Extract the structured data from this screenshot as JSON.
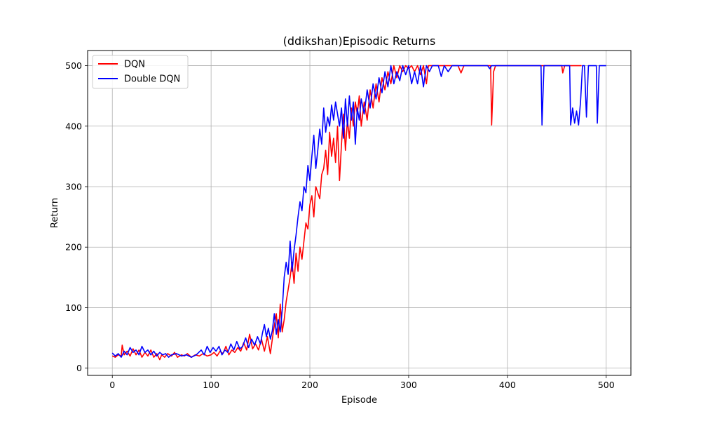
{
  "chart_data": {
    "type": "line",
    "title": "(ddikshan)Episodic Returns",
    "xlabel": "Episode",
    "ylabel": "Return",
    "xlim": [
      -25,
      525
    ],
    "ylim": [
      -12,
      525
    ],
    "xticks": [
      0,
      100,
      200,
      300,
      400,
      500
    ],
    "yticks": [
      0,
      100,
      200,
      300,
      400,
      500
    ],
    "grid": true,
    "legend_position": "top-left",
    "series": [
      {
        "name": "DQN",
        "color": "#ff0000",
        "points": [
          [
            0,
            20
          ],
          [
            3,
            18
          ],
          [
            6,
            22
          ],
          [
            9,
            20
          ],
          [
            10,
            38
          ],
          [
            12,
            22
          ],
          [
            15,
            28
          ],
          [
            18,
            20
          ],
          [
            21,
            32
          ],
          [
            24,
            22
          ],
          [
            27,
            30
          ],
          [
            30,
            18
          ],
          [
            33,
            26
          ],
          [
            36,
            20
          ],
          [
            39,
            30
          ],
          [
            42,
            18
          ],
          [
            45,
            24
          ],
          [
            48,
            14
          ],
          [
            50,
            22
          ],
          [
            53,
            18
          ],
          [
            56,
            24
          ],
          [
            60,
            20
          ],
          [
            63,
            26
          ],
          [
            66,
            18
          ],
          [
            70,
            22
          ],
          [
            73,
            20
          ],
          [
            76,
            24
          ],
          [
            80,
            18
          ],
          [
            84,
            22
          ],
          [
            88,
            20
          ],
          [
            92,
            24
          ],
          [
            96,
            20
          ],
          [
            100,
            22
          ],
          [
            103,
            26
          ],
          [
            106,
            20
          ],
          [
            109,
            28
          ],
          [
            112,
            24
          ],
          [
            115,
            36
          ],
          [
            118,
            22
          ],
          [
            121,
            30
          ],
          [
            124,
            26
          ],
          [
            127,
            34
          ],
          [
            130,
            28
          ],
          [
            133,
            42
          ],
          [
            136,
            30
          ],
          [
            139,
            56
          ],
          [
            142,
            32
          ],
          [
            145,
            40
          ],
          [
            148,
            30
          ],
          [
            151,
            48
          ],
          [
            154,
            28
          ],
          [
            157,
            52
          ],
          [
            160,
            24
          ],
          [
            163,
            60
          ],
          [
            166,
            90
          ],
          [
            168,
            50
          ],
          [
            170,
            106
          ],
          [
            172,
            60
          ],
          [
            174,
            80
          ],
          [
            176,
            110
          ],
          [
            178,
            130
          ],
          [
            180,
            150
          ],
          [
            182,
            175
          ],
          [
            184,
            140
          ],
          [
            186,
            190
          ],
          [
            188,
            160
          ],
          [
            190,
            200
          ],
          [
            192,
            180
          ],
          [
            194,
            210
          ],
          [
            196,
            240
          ],
          [
            198,
            230
          ],
          [
            200,
            270
          ],
          [
            202,
            285
          ],
          [
            204,
            250
          ],
          [
            206,
            300
          ],
          [
            208,
            290
          ],
          [
            210,
            280
          ],
          [
            212,
            320
          ],
          [
            214,
            330
          ],
          [
            216,
            360
          ],
          [
            218,
            320
          ],
          [
            220,
            390
          ],
          [
            222,
            350
          ],
          [
            224,
            380
          ],
          [
            226,
            340
          ],
          [
            228,
            400
          ],
          [
            230,
            310
          ],
          [
            232,
            370
          ],
          [
            234,
            420
          ],
          [
            236,
            360
          ],
          [
            238,
            410
          ],
          [
            240,
            380
          ],
          [
            242,
            430
          ],
          [
            244,
            400
          ],
          [
            246,
            440
          ],
          [
            248,
            420
          ],
          [
            250,
            450
          ],
          [
            252,
            400
          ],
          [
            255,
            440
          ],
          [
            258,
            410
          ],
          [
            261,
            460
          ],
          [
            264,
            430
          ],
          [
            267,
            470
          ],
          [
            270,
            440
          ],
          [
            273,
            480
          ],
          [
            276,
            460
          ],
          [
            279,
            490
          ],
          [
            282,
            470
          ],
          [
            285,
            500
          ],
          [
            288,
            480
          ],
          [
            291,
            500
          ],
          [
            294,
            490
          ],
          [
            297,
            500
          ],
          [
            300,
            495
          ],
          [
            303,
            500
          ],
          [
            306,
            490
          ],
          [
            309,
            500
          ],
          [
            312,
            485
          ],
          [
            315,
            500
          ],
          [
            318,
            470
          ],
          [
            320,
            500
          ],
          [
            350,
            500
          ],
          [
            353,
            488
          ],
          [
            356,
            500
          ],
          [
            383,
            500
          ],
          [
            384,
            402
          ],
          [
            386,
            490
          ],
          [
            388,
            500
          ],
          [
            455,
            500
          ],
          [
            456,
            488
          ],
          [
            458,
            500
          ],
          [
            475,
            500
          ]
        ]
      },
      {
        "name": "Double DQN",
        "color": "#0000ff",
        "points": [
          [
            0,
            25
          ],
          [
            3,
            20
          ],
          [
            6,
            24
          ],
          [
            9,
            18
          ],
          [
            12,
            28
          ],
          [
            15,
            22
          ],
          [
            18,
            34
          ],
          [
            21,
            26
          ],
          [
            24,
            30
          ],
          [
            27,
            22
          ],
          [
            30,
            36
          ],
          [
            33,
            26
          ],
          [
            36,
            30
          ],
          [
            39,
            22
          ],
          [
            42,
            28
          ],
          [
            45,
            20
          ],
          [
            48,
            26
          ],
          [
            51,
            22
          ],
          [
            54,
            24
          ],
          [
            57,
            18
          ],
          [
            60,
            22
          ],
          [
            65,
            24
          ],
          [
            70,
            20
          ],
          [
            75,
            22
          ],
          [
            80,
            18
          ],
          [
            85,
            22
          ],
          [
            90,
            30
          ],
          [
            93,
            22
          ],
          [
            96,
            36
          ],
          [
            99,
            26
          ],
          [
            102,
            34
          ],
          [
            105,
            28
          ],
          [
            108,
            36
          ],
          [
            111,
            22
          ],
          [
            114,
            30
          ],
          [
            117,
            26
          ],
          [
            120,
            40
          ],
          [
            123,
            30
          ],
          [
            126,
            44
          ],
          [
            129,
            32
          ],
          [
            132,
            36
          ],
          [
            135,
            50
          ],
          [
            138,
            34
          ],
          [
            141,
            48
          ],
          [
            144,
            38
          ],
          [
            147,
            52
          ],
          [
            150,
            40
          ],
          [
            152,
            58
          ],
          [
            154,
            72
          ],
          [
            156,
            52
          ],
          [
            158,
            66
          ],
          [
            160,
            48
          ],
          [
            162,
            62
          ],
          [
            164,
            90
          ],
          [
            166,
            56
          ],
          [
            168,
            80
          ],
          [
            170,
            60
          ],
          [
            172,
            96
          ],
          [
            174,
            150
          ],
          [
            176,
            175
          ],
          [
            178,
            155
          ],
          [
            180,
            210
          ],
          [
            182,
            160
          ],
          [
            184,
            195
          ],
          [
            186,
            220
          ],
          [
            188,
            250
          ],
          [
            190,
            275
          ],
          [
            192,
            260
          ],
          [
            194,
            300
          ],
          [
            196,
            290
          ],
          [
            198,
            335
          ],
          [
            200,
            310
          ],
          [
            202,
            350
          ],
          [
            204,
            385
          ],
          [
            206,
            330
          ],
          [
            208,
            360
          ],
          [
            210,
            395
          ],
          [
            212,
            370
          ],
          [
            214,
            430
          ],
          [
            216,
            390
          ],
          [
            218,
            415
          ],
          [
            220,
            400
          ],
          [
            222,
            435
          ],
          [
            224,
            410
          ],
          [
            226,
            440
          ],
          [
            228,
            420
          ],
          [
            230,
            400
          ],
          [
            232,
            430
          ],
          [
            234,
            380
          ],
          [
            236,
            445
          ],
          [
            238,
            400
          ],
          [
            240,
            450
          ],
          [
            242,
            410
          ],
          [
            244,
            440
          ],
          [
            246,
            370
          ],
          [
            248,
            430
          ],
          [
            250,
            410
          ],
          [
            252,
            445
          ],
          [
            255,
            420
          ],
          [
            258,
            460
          ],
          [
            261,
            430
          ],
          [
            264,
            470
          ],
          [
            267,
            445
          ],
          [
            270,
            480
          ],
          [
            273,
            455
          ],
          [
            276,
            490
          ],
          [
            279,
            465
          ],
          [
            282,
            500
          ],
          [
            285,
            470
          ],
          [
            288,
            490
          ],
          [
            291,
            475
          ],
          [
            294,
            500
          ],
          [
            297,
            485
          ],
          [
            300,
            500
          ],
          [
            303,
            470
          ],
          [
            306,
            490
          ],
          [
            309,
            470
          ],
          [
            312,
            500
          ],
          [
            315,
            465
          ],
          [
            318,
            500
          ],
          [
            321,
            490
          ],
          [
            324,
            500
          ],
          [
            330,
            500
          ],
          [
            333,
            482
          ],
          [
            336,
            500
          ],
          [
            340,
            490
          ],
          [
            344,
            500
          ],
          [
            380,
            500
          ],
          [
            382,
            495
          ],
          [
            384,
            500
          ],
          [
            434,
            500
          ],
          [
            435,
            402
          ],
          [
            437,
            500
          ],
          [
            463,
            500
          ],
          [
            464,
            402
          ],
          [
            466,
            430
          ],
          [
            468,
            405
          ],
          [
            470,
            425
          ],
          [
            472,
            402
          ],
          [
            474,
            440
          ],
          [
            476,
            500
          ],
          [
            478,
            500
          ],
          [
            480,
            415
          ],
          [
            482,
            500
          ],
          [
            490,
            500
          ],
          [
            491,
            405
          ],
          [
            493,
            500
          ],
          [
            500,
            500
          ]
        ]
      }
    ]
  }
}
